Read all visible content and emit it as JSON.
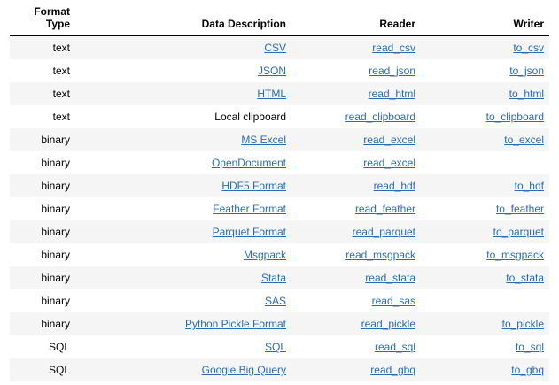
{
  "headers": {
    "format_type_line1": "Format",
    "format_type_line2": "Type",
    "data_description": "Data Description",
    "reader": "Reader",
    "writer": "Writer"
  },
  "rows": [
    {
      "format_type": "text",
      "description": "CSV",
      "description_is_link": true,
      "reader": "read_csv",
      "writer": "to_csv"
    },
    {
      "format_type": "text",
      "description": "JSON",
      "description_is_link": true,
      "reader": "read_json",
      "writer": "to_json"
    },
    {
      "format_type": "text",
      "description": "HTML",
      "description_is_link": true,
      "reader": "read_html",
      "writer": "to_html"
    },
    {
      "format_type": "text",
      "description": "Local clipboard",
      "description_is_link": false,
      "reader": "read_clipboard",
      "writer": "to_clipboard"
    },
    {
      "format_type": "binary",
      "description": "MS Excel",
      "description_is_link": true,
      "reader": "read_excel",
      "writer": "to_excel"
    },
    {
      "format_type": "binary",
      "description": "OpenDocument",
      "description_is_link": true,
      "reader": "read_excel",
      "writer": ""
    },
    {
      "format_type": "binary",
      "description": "HDF5 Format",
      "description_is_link": true,
      "reader": "read_hdf",
      "writer": "to_hdf"
    },
    {
      "format_type": "binary",
      "description": "Feather Format",
      "description_is_link": true,
      "reader": "read_feather",
      "writer": "to_feather"
    },
    {
      "format_type": "binary",
      "description": "Parquet Format",
      "description_is_link": true,
      "reader": "read_parquet",
      "writer": "to_parquet"
    },
    {
      "format_type": "binary",
      "description": "Msgpack",
      "description_is_link": true,
      "reader": "read_msgpack",
      "writer": "to_msgpack"
    },
    {
      "format_type": "binary",
      "description": "Stata",
      "description_is_link": true,
      "reader": "read_stata",
      "writer": "to_stata"
    },
    {
      "format_type": "binary",
      "description": "SAS",
      "description_is_link": true,
      "reader": "read_sas",
      "writer": ""
    },
    {
      "format_type": "binary",
      "description": "Python Pickle Format",
      "description_is_link": true,
      "reader": "read_pickle",
      "writer": "to_pickle"
    },
    {
      "format_type": "SQL",
      "description": "SQL",
      "description_is_link": true,
      "reader": "read_sql",
      "writer": "to_sql"
    },
    {
      "format_type": "SQL",
      "description": "Google Big Query",
      "description_is_link": true,
      "reader": "read_gbq",
      "writer": "to_gbq"
    }
  ],
  "colors": {
    "link": "#2b6cb0",
    "stripe": "#f5f5f5",
    "header_rule": "#000000"
  }
}
